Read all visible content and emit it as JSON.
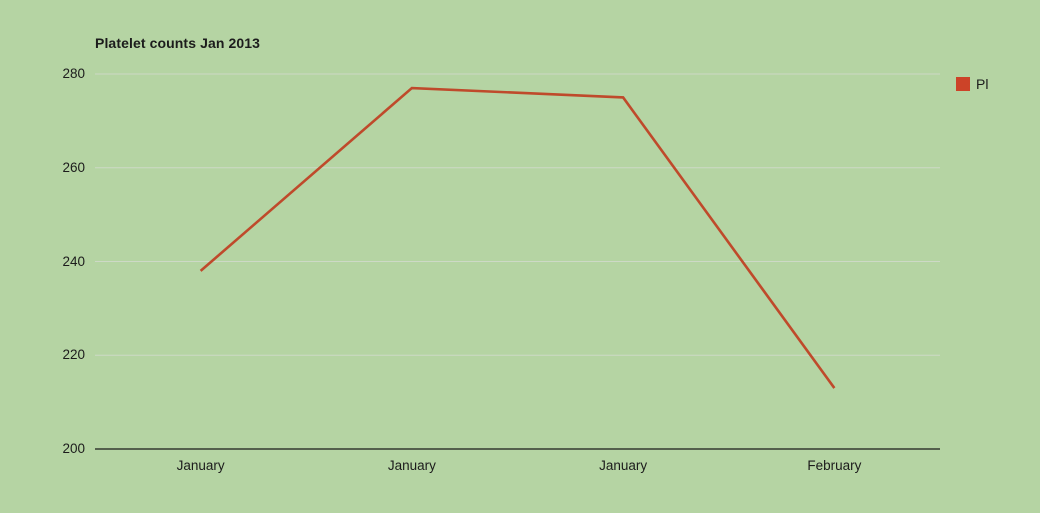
{
  "chart_data": {
    "type": "line",
    "title": "Platelet counts Jan 2013",
    "categories": [
      "January",
      "January",
      "January",
      "February"
    ],
    "series": [
      {
        "name": "Pl",
        "values": [
          238,
          277,
          275,
          213
        ],
        "color": "#bf4a2b"
      }
    ],
    "xlabel": "",
    "ylabel": "",
    "ylim": [
      200,
      280
    ],
    "yticks": [
      200,
      220,
      240,
      260,
      280
    ],
    "grid": true,
    "legend_position": "top-right"
  },
  "legend": {
    "label": "Pl",
    "swatch_color": "#cc4328"
  },
  "colors": {
    "background": "#b5d4a3",
    "gridline": "#cdd9c6",
    "axis_line": "#1a1a1a",
    "text": "#1c1c1c"
  }
}
